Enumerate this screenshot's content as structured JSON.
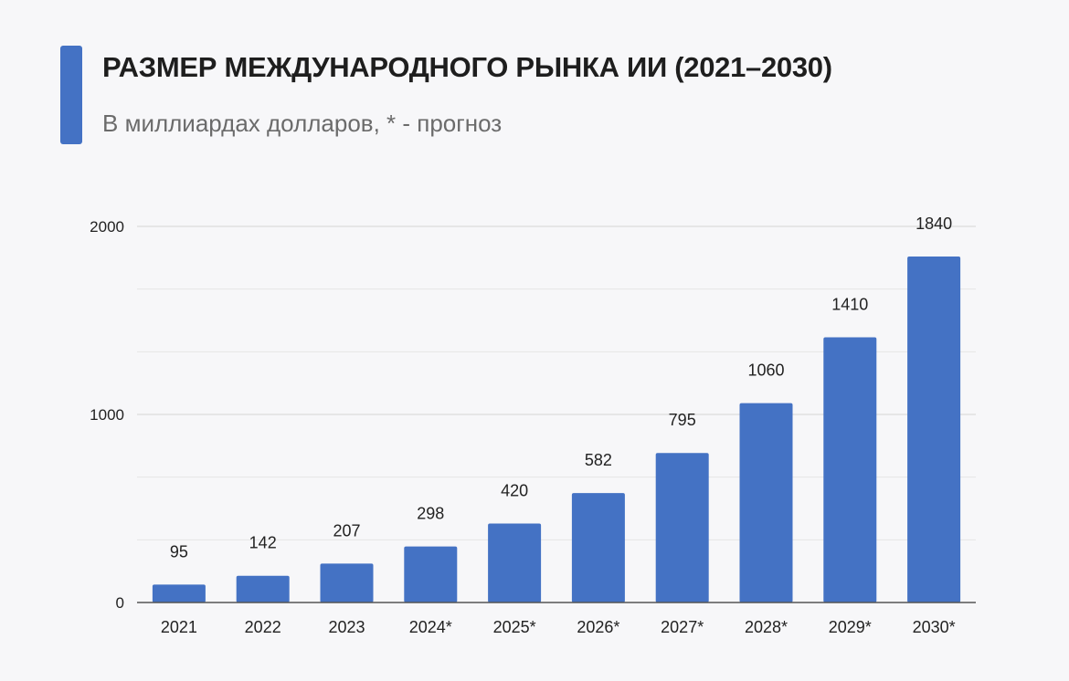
{
  "header": {
    "title": "РАЗМЕР МЕЖДУНАРОДНОГО РЫНКА ИИ (2021–2030)",
    "subtitle": "В миллиардах долларов, * - прогноз"
  },
  "colors": {
    "accent": "#4472c4",
    "bar": "#4472c4",
    "grid": "#dcdcdc",
    "axis": "#555555",
    "text": "#222222"
  },
  "chart_data": {
    "type": "bar",
    "categories": [
      "2021",
      "2022",
      "2023",
      "2024*",
      "2025*",
      "2026*",
      "2027*",
      "2028*",
      "2029*",
      "2030*"
    ],
    "values": [
      95,
      142,
      207,
      298,
      420,
      582,
      795,
      1060,
      1410,
      1840
    ],
    "ylim": [
      0,
      2000
    ],
    "yticks": [
      0,
      1000,
      2000
    ],
    "minor_gridlines": [
      333.3,
      666.7,
      1333.3,
      1666.7
    ],
    "grid": true,
    "data_labels": true,
    "legend": "none"
  }
}
